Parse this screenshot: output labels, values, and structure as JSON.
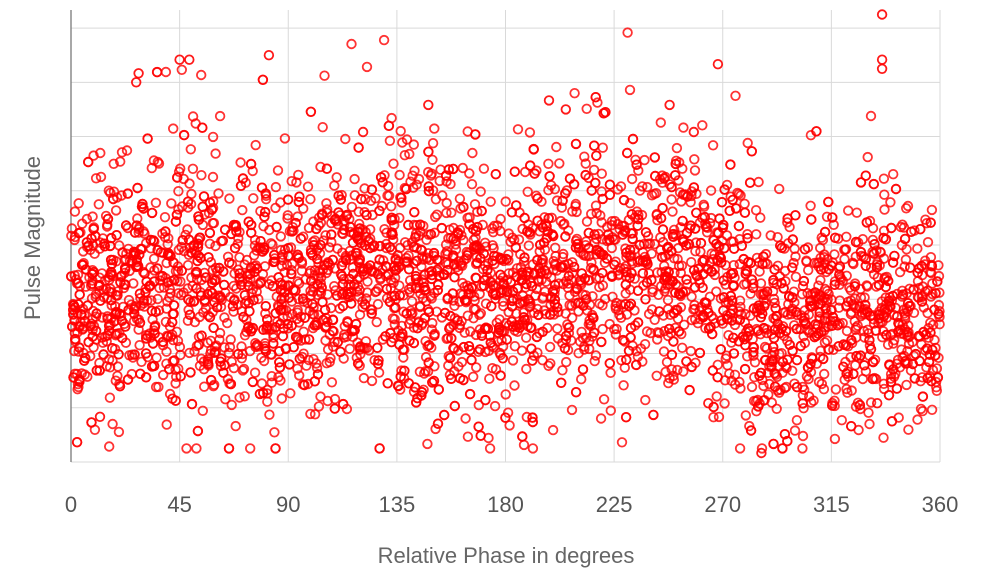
{
  "chart_data": {
    "type": "scatter",
    "title": "",
    "xlabel": "Relative Phase in degrees",
    "ylabel": "Pulse Magnitude",
    "xlim": [
      0,
      360
    ],
    "x_ticks": [
      0,
      45,
      90,
      135,
      180,
      225,
      270,
      315,
      360
    ],
    "y_tick_labels_shown": false,
    "grid": true,
    "marker": "hollow-circle",
    "series": [
      {
        "color": "#ff0000",
        "point_count": 4200,
        "description_values": {
          "baseline_level_by_phase": [
            [
              0,
              0.33
            ],
            [
              45,
              0.4
            ],
            [
              90,
              0.36
            ],
            [
              135,
              0.42
            ],
            [
              180,
              0.36
            ],
            [
              225,
              0.43
            ],
            [
              270,
              0.4
            ],
            [
              290,
              0.27
            ],
            [
              315,
              0.33
            ],
            [
              360,
              0.31
            ]
          ],
          "spread_by_phase": [
            [
              0,
              0.11
            ],
            [
              45,
              0.15
            ],
            [
              90,
              0.13
            ],
            [
              135,
              0.14
            ],
            [
              180,
              0.13
            ],
            [
              225,
              0.14
            ],
            [
              270,
              0.13
            ],
            [
              315,
              0.12
            ],
            [
              360,
              0.11
            ]
          ]
        },
        "outliers": [
          [
            28,
            0.86
          ],
          [
            45,
            0.89
          ],
          [
            49,
            0.89
          ],
          [
            82,
            0.9
          ],
          [
            148,
            0.79
          ],
          [
            205,
            0.78
          ],
          [
            198,
            0.8
          ],
          [
            248,
            0.79
          ],
          [
            268,
            0.88
          ],
          [
            336,
            0.99
          ],
          [
            336,
            0.89
          ],
          [
            336,
            0.87
          ],
          [
            27,
            0.84
          ],
          [
            121,
            0.73
          ],
          [
            258,
            0.73
          ],
          [
            286,
            0.02
          ],
          [
            12,
            0.1
          ],
          [
            42,
            0.14
          ],
          [
            334,
            0.13
          ],
          [
            264,
            0.13
          ]
        ]
      }
    ]
  }
}
